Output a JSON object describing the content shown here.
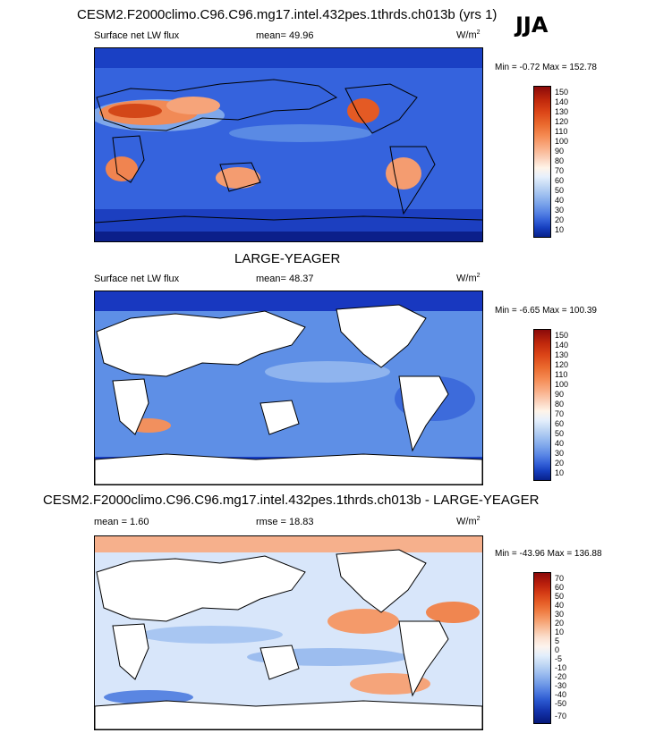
{
  "season": "JJA",
  "panels": [
    {
      "title": "CESM2.F2000climo.C96.C96.mg17.intel.432pes.1thrds.ch013b (yrs 1)",
      "left_label": "Surface net LW flux",
      "center_label": "mean=  49.96",
      "units_base": "W/m",
      "units_exp": "2",
      "minmax": "Min =  -0.72 Max = 152.78",
      "colorbar_ticks": [
        "150",
        "140",
        "130",
        "120",
        "110",
        "100",
        "90",
        "80",
        "70",
        "60",
        "50",
        "40",
        "30",
        "20",
        "10"
      ],
      "colorbar_colors": [
        "#8b0a0a",
        "#c0280c",
        "#dc4618",
        "#ea6a2e",
        "#f58c55",
        "#f9b08a",
        "#fbd3bd",
        "#fff4e8",
        "#e6f0fc",
        "#c2d8f4",
        "#9ebff0",
        "#7aa3ea",
        "#5582e4",
        "#3461d8",
        "#163fbf",
        "#08208a"
      ]
    },
    {
      "title": "LARGE-YEAGER",
      "left_label": "Surface net LW flux",
      "center_label": "mean=  48.37",
      "units_base": "W/m",
      "units_exp": "2",
      "minmax": "Min =  -6.65 Max = 100.39",
      "colorbar_ticks": [
        "150",
        "140",
        "130",
        "120",
        "110",
        "100",
        "90",
        "80",
        "70",
        "60",
        "50",
        "40",
        "30",
        "20",
        "10"
      ],
      "colorbar_colors": [
        "#8b0a0a",
        "#c0280c",
        "#dc4618",
        "#ea6a2e",
        "#f58c55",
        "#f9b08a",
        "#fbd3bd",
        "#fff4e8",
        "#e6f0fc",
        "#c2d8f4",
        "#9ebff0",
        "#7aa3ea",
        "#5582e4",
        "#3461d8",
        "#163fbf",
        "#08208a"
      ]
    },
    {
      "title": "CESM2.F2000climo.C96.C96.mg17.intel.432pes.1thrds.ch013b - LARGE-YEAGER",
      "left_label": "mean =   1.60",
      "center_label": "rmse =  18.83",
      "units_base": "W/m",
      "units_exp": "2",
      "minmax": "Min = -43.96 Max = 136.88",
      "colorbar_ticks": [
        "70",
        "60",
        "50",
        "40",
        "30",
        "20",
        "10",
        "5",
        "0",
        "-5",
        "-10",
        "-20",
        "-30",
        "-40",
        "-50",
        "-70"
      ],
      "colorbar_colors": [
        "#8b0a0a",
        "#b81e0c",
        "#d33a14",
        "#e45a24",
        "#ef7a40",
        "#f59c6a",
        "#f8bf9c",
        "#fbe0cf",
        "#fdf4ee",
        "#e2eefb",
        "#c0d7f4",
        "#9cbdef",
        "#769fe8",
        "#4f7ce0",
        "#2a57cf",
        "#1333ac",
        "#06187a"
      ]
    }
  ]
}
